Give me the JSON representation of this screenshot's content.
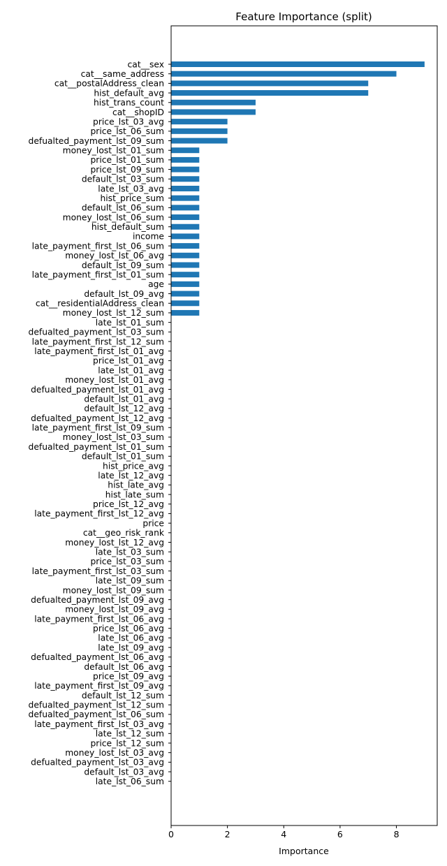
{
  "chart_data": {
    "type": "bar",
    "orientation": "horizontal",
    "title": "Feature Importance (split)",
    "xlabel": "Importance",
    "ylabel": "",
    "xlim": [
      0,
      9.45
    ],
    "x_ticks": [
      "0",
      "2",
      "4",
      "6",
      "8"
    ],
    "grid": false,
    "bar_color": "#1f77b4",
    "categories": [
      "cat__sex",
      "cat__same_address",
      "cat__postalAddress_clean",
      "hist_default_avg",
      "hist_trans_count",
      "cat__shopID",
      "price_lst_03_avg",
      "price_lst_06_sum",
      "defualted_payment_lst_09_sum",
      "money_lost_lst_01_sum",
      "price_lst_01_sum",
      "price_lst_09_sum",
      "default_lst_03_sum",
      "late_lst_03_avg",
      "hist_price_sum",
      "default_lst_06_sum",
      "money_lost_lst_06_sum",
      "hist_default_sum",
      "income",
      "late_payment_first_lst_06_sum",
      "money_lost_lst_06_avg",
      "default_lst_09_sum",
      "late_payment_first_lst_01_sum",
      "age",
      "default_lst_09_avg",
      "cat__residentialAddress_clean",
      "money_lost_lst_12_sum",
      "late_lst_01_sum",
      "defualted_payment_lst_03_sum",
      "late_payment_first_lst_12_sum",
      "late_payment_first_lst_01_avg",
      "price_lst_01_avg",
      "late_lst_01_avg",
      "money_lost_lst_01_avg",
      "defualted_payment_lst_01_avg",
      "default_lst_01_avg",
      "default_lst_12_avg",
      "defualted_payment_lst_12_avg",
      "late_payment_first_lst_09_sum",
      "money_lost_lst_03_sum",
      "defualted_payment_lst_01_sum",
      "default_lst_01_sum",
      "hist_price_avg",
      "late_lst_12_avg",
      "hist_late_avg",
      "hist_late_sum",
      "price_lst_12_avg",
      "late_payment_first_lst_12_avg",
      "price",
      "cat__geo_risk_rank",
      "money_lost_lst_12_avg",
      "late_lst_03_sum",
      "price_lst_03_sum",
      "late_payment_first_lst_03_sum",
      "late_lst_09_sum",
      "money_lost_lst_09_sum",
      "defualted_payment_lst_09_avg",
      "money_lost_lst_09_avg",
      "late_payment_first_lst_06_avg",
      "price_lst_06_avg",
      "late_lst_06_avg",
      "late_lst_09_avg",
      "defualted_payment_lst_06_avg",
      "default_lst_06_avg",
      "price_lst_09_avg",
      "late_payment_first_lst_09_avg",
      "default_lst_12_sum",
      "defualted_payment_lst_12_sum",
      "defualted_payment_lst_06_sum",
      "late_payment_first_lst_03_avg",
      "late_lst_12_sum",
      "price_lst_12_sum",
      "money_lost_lst_03_avg",
      "defualted_payment_lst_03_avg",
      "default_lst_03_avg",
      "late_lst_06_sum"
    ],
    "values": [
      9,
      8,
      7,
      7,
      3,
      3,
      2,
      2,
      2,
      1,
      1,
      1,
      1,
      1,
      1,
      1,
      1,
      1,
      1,
      1,
      1,
      1,
      1,
      1,
      1,
      1,
      1,
      0,
      0,
      0,
      0,
      0,
      0,
      0,
      0,
      0,
      0,
      0,
      0,
      0,
      0,
      0,
      0,
      0,
      0,
      0,
      0,
      0,
      0,
      0,
      0,
      0,
      0,
      0,
      0,
      0,
      0,
      0,
      0,
      0,
      0,
      0,
      0,
      0,
      0,
      0,
      0,
      0,
      0,
      0,
      0,
      0,
      0,
      0,
      0,
      0
    ]
  }
}
